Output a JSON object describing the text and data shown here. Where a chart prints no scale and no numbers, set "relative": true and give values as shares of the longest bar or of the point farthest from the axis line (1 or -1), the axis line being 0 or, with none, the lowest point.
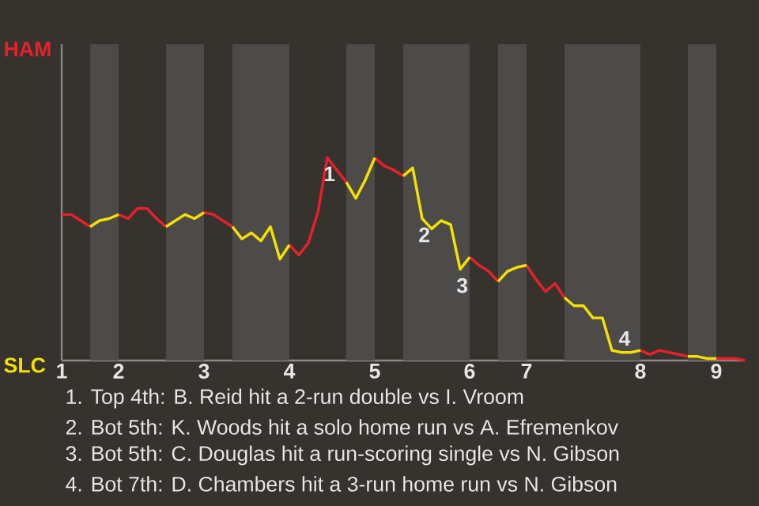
{
  "chart_data": {
    "type": "line",
    "relative": true,
    "categories": [
      "1",
      null,
      null,
      null,
      null,
      null,
      "2",
      null,
      null,
      null,
      null,
      null,
      null,
      null,
      null,
      "3",
      null,
      null,
      null,
      null,
      null,
      null,
      null,
      null,
      "4",
      null,
      null,
      null,
      null,
      null,
      null,
      null,
      null,
      "5",
      null,
      null,
      null,
      null,
      null,
      null,
      null,
      null,
      null,
      "6",
      null,
      null,
      null,
      null,
      null,
      "7",
      null,
      null,
      null,
      null,
      null,
      null,
      null,
      null,
      null,
      null,
      null,
      "8",
      null,
      null,
      null,
      null,
      null,
      null,
      null,
      "9",
      null,
      null,
      null
    ],
    "series": [
      {
        "color": "#e8202a",
        "values": [
          0.72,
          0.72,
          0.69,
          0.66,
          null,
          null,
          0.72,
          0.7,
          0.75,
          0.75,
          0.7,
          0.66,
          null,
          null,
          null,
          0.73,
          0.72,
          0.69,
          0.66,
          null,
          null,
          null,
          null,
          null,
          0.57,
          0.52,
          0.58,
          0.73,
          1,
          0.94,
          0.88,
          null,
          null,
          1,
          0.96,
          0.94,
          0.91,
          null,
          null,
          null,
          null,
          null,
          null,
          0.51,
          0.47,
          0.44,
          0.39,
          null,
          null,
          0.47,
          0.4,
          0.34,
          0.38,
          0.31,
          null,
          null,
          null,
          null,
          null,
          null,
          null,
          0.05,
          0.03,
          0.05,
          0.04,
          0.03,
          0.02,
          null,
          null,
          0.01,
          0.01,
          0.01,
          0
        ]
      },
      {
        "color": "#f5e000",
        "values": [
          null,
          null,
          null,
          0.66,
          0.69,
          0.7,
          0.72,
          null,
          null,
          null,
          null,
          0.66,
          0.69,
          0.72,
          0.7,
          0.73,
          null,
          null,
          0.66,
          0.6,
          0.63,
          0.59,
          0.66,
          0.5,
          0.57,
          null,
          null,
          null,
          null,
          null,
          0.88,
          0.8,
          0.89,
          1,
          null,
          null,
          0.91,
          0.95,
          0.7,
          0.65,
          0.69,
          0.67,
          0.45,
          0.51,
          null,
          null,
          0.39,
          0.44,
          0.46,
          0.47,
          null,
          null,
          null,
          0.31,
          0.27,
          0.27,
          0.21,
          0.21,
          0.05,
          0.04,
          0.04,
          0.05,
          null,
          null,
          null,
          null,
          0.02,
          0.02,
          0.01,
          0.01,
          null,
          null,
          null
        ]
      }
    ],
    "annotations": [
      "HAM",
      "SLC",
      {
        "text": "1",
        "y": 1
      },
      {
        "text": "2",
        "y": 0.7
      },
      {
        "text": "3",
        "y": 0.45
      },
      {
        "text": "4",
        "y": 0.05
      },
      "1. Top 4th: B. Reid hit a 2-run double vs I. Vroom",
      "2. Bot 5th: K. Woods hit a solo home run vs A. Efremenkov",
      "3. Bot 5th: C. Douglas hit a run-scoring single vs N. Gibson",
      "4. Bot 7th: D. Chambers hit a 3-run home run vs N. Gibson"
    ]
  }
}
